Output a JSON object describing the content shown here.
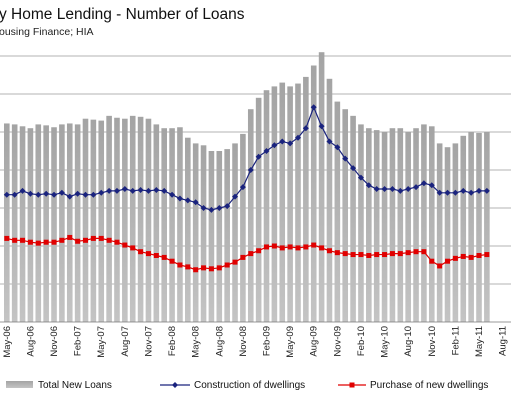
{
  "chart_data": {
    "type": "bar",
    "title": "y Home Lending - Number of Loans",
    "subtitle": "ousing Finance; HIA",
    "grid": true,
    "legend_position": "bottom",
    "colors": {
      "bars": "#a9a9a9",
      "construction": "#1a237e",
      "purchase": "#e00000",
      "grid": "#9a9a9a"
    },
    "x_tick_labels": [
      "May-06",
      "Aug-06",
      "Nov-06",
      "Feb-07",
      "May-07",
      "Aug-07",
      "Nov-07",
      "Feb-08",
      "May-08",
      "Aug-08",
      "Nov-08",
      "Feb-09",
      "May-09",
      "Aug-09",
      "Nov-09",
      "Feb-10",
      "May-10",
      "Aug-10",
      "Nov-10",
      "Feb-11",
      "May-11",
      "Aug-11"
    ],
    "series": [
      {
        "name": "Total New Loans",
        "marker": "bar",
        "values": [
          10.45,
          10.4,
          10.3,
          10.2,
          10.4,
          10.35,
          10.25,
          10.4,
          10.45,
          10.4,
          10.7,
          10.65,
          10.6,
          10.85,
          10.75,
          10.7,
          10.85,
          10.8,
          10.7,
          10.4,
          10.2,
          10.2,
          10.25,
          9.7,
          9.4,
          9.3,
          9.0,
          9.0,
          9.1,
          9.4,
          9.9,
          11.2,
          11.8,
          12.2,
          12.4,
          12.6,
          12.4,
          12.55,
          12.9,
          13.5,
          14.2,
          12.8,
          11.6,
          11.2,
          10.85,
          10.4,
          10.2,
          10.1,
          10.0,
          10.2,
          10.2,
          10.0,
          10.2,
          10.4,
          10.3,
          9.4,
          9.2,
          9.4,
          9.8,
          10.0,
          9.95,
          10.0
        ]
      },
      {
        "name": "Construction of dwellings",
        "marker": "diamond-line",
        "values": [
          6.7,
          6.7,
          6.9,
          6.75,
          6.7,
          6.75,
          6.7,
          6.8,
          6.6,
          6.75,
          6.7,
          6.7,
          6.8,
          6.9,
          6.9,
          7.0,
          6.9,
          6.95,
          6.9,
          6.95,
          6.9,
          6.7,
          6.5,
          6.4,
          6.3,
          6.0,
          5.9,
          6.0,
          6.1,
          6.6,
          7.1,
          8.0,
          8.7,
          9.0,
          9.3,
          9.5,
          9.4,
          9.7,
          10.2,
          11.3,
          10.3,
          9.5,
          9.2,
          8.6,
          8.1,
          7.6,
          7.2,
          7.0,
          7.0,
          7.0,
          6.9,
          7.0,
          7.1,
          7.3,
          7.2,
          6.8,
          6.8,
          6.8,
          6.9,
          6.8,
          6.9,
          6.9
        ]
      },
      {
        "name": "Purchase of new dwellings",
        "marker": "square-line",
        "values": [
          4.4,
          4.3,
          4.3,
          4.2,
          4.15,
          4.2,
          4.2,
          4.3,
          4.45,
          4.25,
          4.3,
          4.4,
          4.4,
          4.3,
          4.2,
          4.05,
          3.9,
          3.7,
          3.6,
          3.5,
          3.4,
          3.2,
          3.0,
          2.9,
          2.75,
          2.85,
          2.8,
          2.85,
          3.0,
          3.15,
          3.4,
          3.6,
          3.75,
          3.95,
          4.0,
          3.9,
          3.95,
          3.9,
          3.95,
          4.05,
          3.9,
          3.75,
          3.65,
          3.6,
          3.55,
          3.55,
          3.5,
          3.55,
          3.55,
          3.6,
          3.6,
          3.65,
          3.7,
          3.7,
          3.2,
          2.95,
          3.2,
          3.35,
          3.45,
          3.4,
          3.5,
          3.55
        ]
      }
    ]
  }
}
